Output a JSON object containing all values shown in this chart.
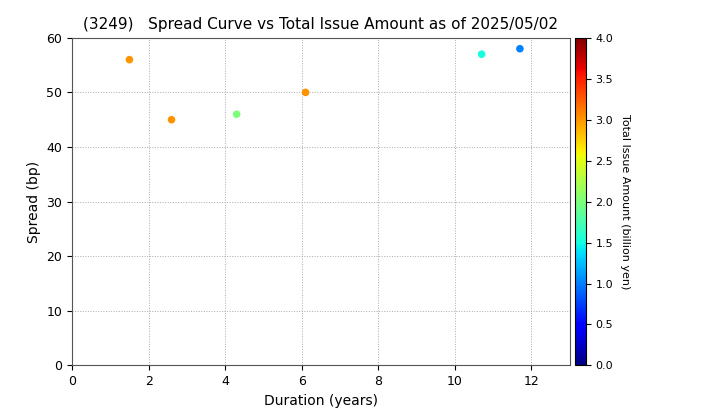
{
  "title": "(3249)   Spread Curve vs Total Issue Amount as of 2025/05/02",
  "xlabel": "Duration (years)",
  "ylabel": "Spread (bp)",
  "colorbar_label": "Total Issue Amount (billion yen)",
  "xlim": [
    0,
    13
  ],
  "ylim": [
    0,
    60
  ],
  "xticks": [
    0,
    2,
    4,
    6,
    8,
    10,
    12
  ],
  "yticks": [
    0,
    10,
    20,
    30,
    40,
    50,
    60
  ],
  "points": [
    {
      "duration": 1.5,
      "spread": 56,
      "amount": 3.0
    },
    {
      "duration": 2.6,
      "spread": 45,
      "amount": 3.0
    },
    {
      "duration": 4.3,
      "spread": 46,
      "amount": 2.0
    },
    {
      "duration": 6.1,
      "spread": 50,
      "amount": 3.0
    },
    {
      "duration": 10.7,
      "spread": 57,
      "amount": 1.5
    },
    {
      "duration": 11.7,
      "spread": 58,
      "amount": 1.0
    }
  ],
  "cmap": "jet",
  "clim": [
    0.0,
    4.0
  ],
  "cticks": [
    0.0,
    0.5,
    1.0,
    1.5,
    2.0,
    2.5,
    3.0,
    3.5,
    4.0
  ],
  "marker_size": 30,
  "background_color": "#ffffff",
  "grid_color": "#aaaaaa",
  "title_fontsize": 11,
  "axis_fontsize": 10
}
